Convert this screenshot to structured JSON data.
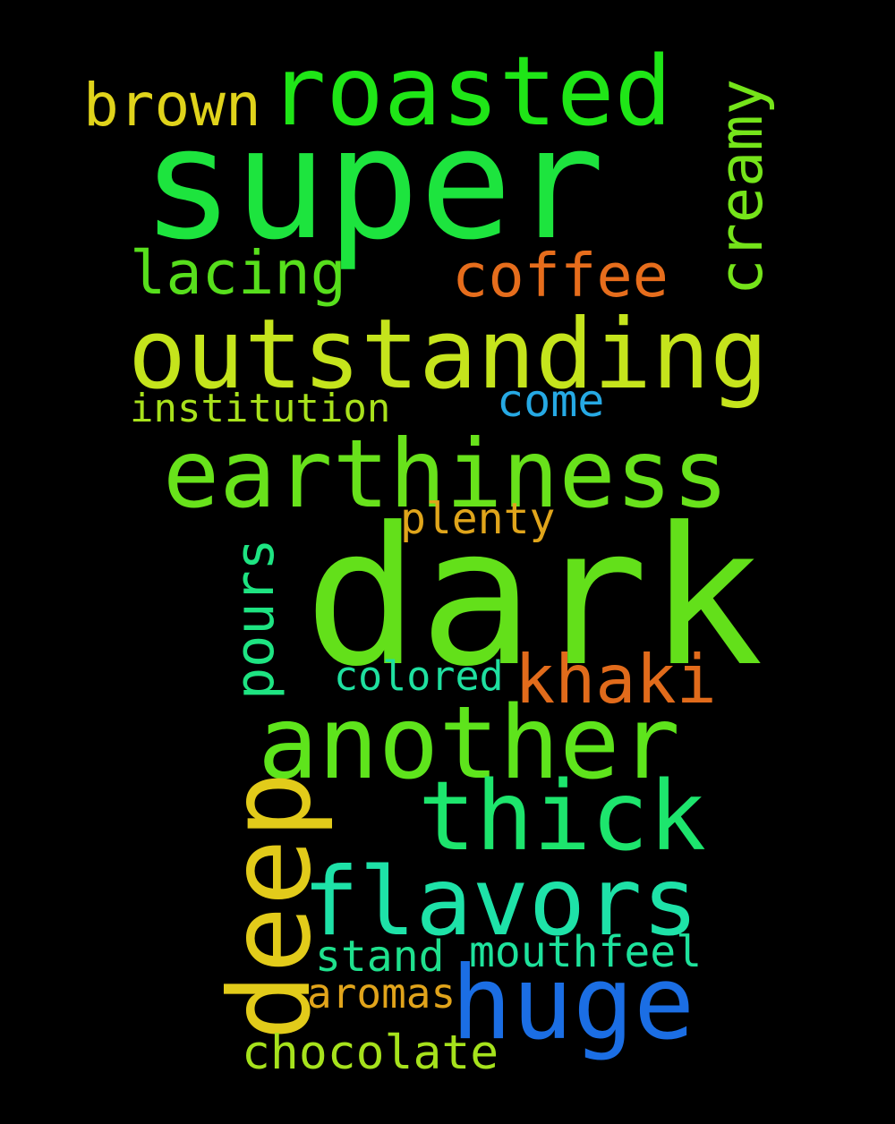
{
  "words": [
    {
      "text": "super",
      "color": "#1de43e"
    },
    {
      "text": "roasted",
      "color": "#1fe617"
    },
    {
      "text": "brown",
      "color": "#e0d31b"
    },
    {
      "text": "creamy",
      "color": "#75e41a"
    },
    {
      "text": "lacing",
      "color": "#57df1c"
    },
    {
      "text": "coffee",
      "color": "#e66d1c"
    },
    {
      "text": "outstanding",
      "color": "#c5e41c"
    },
    {
      "text": "institution",
      "color": "#a8e11c"
    },
    {
      "text": "come",
      "color": "#26a9e4"
    },
    {
      "text": "earthiness",
      "color": "#68e21b"
    },
    {
      "text": "plenty",
      "color": "#e0a51b"
    },
    {
      "text": "dark",
      "color": "#63e01a"
    },
    {
      "text": "pours",
      "color": "#1ee482"
    },
    {
      "text": "colored",
      "color": "#1fe0a0"
    },
    {
      "text": "khaki",
      "color": "#e16b1b"
    },
    {
      "text": "another",
      "color": "#5ee41c"
    },
    {
      "text": "thick",
      "color": "#1de56d"
    },
    {
      "text": "deep",
      "color": "#e2cb1a"
    },
    {
      "text": "flavors",
      "color": "#1ee2a8"
    },
    {
      "text": "stand",
      "color": "#1fe08d"
    },
    {
      "text": "mouthfeel",
      "color": "#1ee29c"
    },
    {
      "text": "aromas",
      "color": "#e1a41b"
    },
    {
      "text": "huge",
      "color": "#1b6ee4"
    },
    {
      "text": "chocolate",
      "color": "#a6e21c"
    }
  ]
}
